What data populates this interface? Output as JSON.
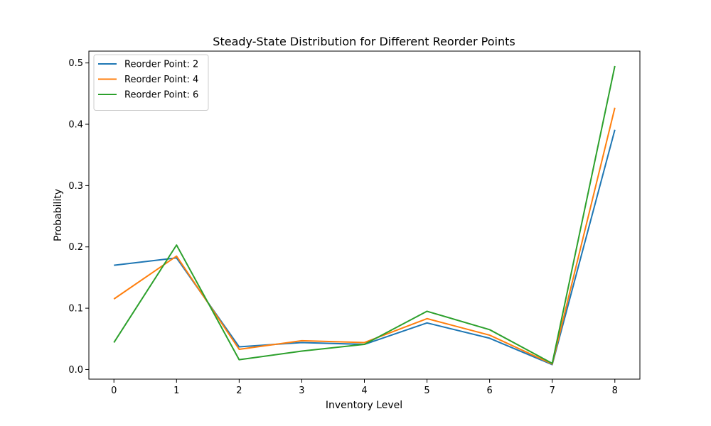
{
  "chart_data": {
    "type": "line",
    "title": "Steady-State Distribution for Different Reorder Points",
    "xlabel": "Inventory Level",
    "ylabel": "Probability",
    "x": [
      0,
      1,
      2,
      3,
      4,
      5,
      6,
      7,
      8
    ],
    "xlim": [
      -0.4,
      8.4
    ],
    "ylim": [
      -0.0157,
      0.5193
    ],
    "yticks": [
      0.0,
      0.1,
      0.2,
      0.3,
      0.4,
      0.5
    ],
    "ytick_labels": [
      "0.0",
      "0.1",
      "0.2",
      "0.3",
      "0.4",
      "0.5"
    ],
    "xtick_labels": [
      "0",
      "1",
      "2",
      "3",
      "4",
      "5",
      "6",
      "7",
      "8"
    ],
    "grid": false,
    "legend_position": "top-left",
    "series": [
      {
        "name": "Reorder Point: 2",
        "color": "#1f77b4",
        "values": [
          0.17,
          0.182,
          0.037,
          0.044,
          0.041,
          0.076,
          0.051,
          0.008,
          0.391
        ]
      },
      {
        "name": "Reorder Point: 4",
        "color": "#ff7f0e",
        "values": [
          0.115,
          0.185,
          0.033,
          0.047,
          0.044,
          0.083,
          0.056,
          0.009,
          0.427
        ]
      },
      {
        "name": "Reorder Point: 6",
        "color": "#2ca02c",
        "values": [
          0.044,
          0.203,
          0.016,
          0.03,
          0.041,
          0.095,
          0.065,
          0.01,
          0.495
        ]
      }
    ]
  }
}
